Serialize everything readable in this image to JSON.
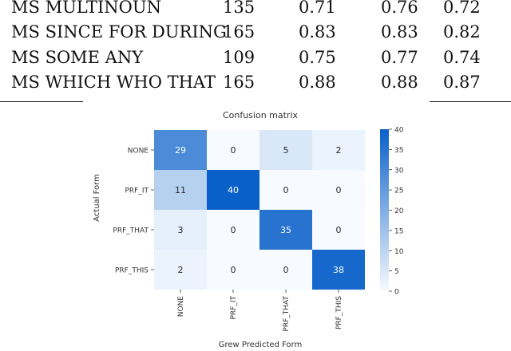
{
  "table": {
    "rows": [
      [
        "MS MULTINOUN",
        "135",
        "0.71",
        "0.76",
        "0.72"
      ],
      [
        "MS SINCE FOR DURING",
        "165",
        "0.83",
        "0.83",
        "0.82"
      ],
      [
        "MS SOME ANY",
        "109",
        "0.75",
        "0.77",
        "0.74"
      ],
      [
        "MS WHICH WHO THAT",
        "165",
        "0.88",
        "0.88",
        "0.87"
      ]
    ]
  },
  "chart_data": {
    "type": "heatmap",
    "title": "Confusion matrix",
    "xlabel": "Grew Predicted Form",
    "ylabel": "Actual Form",
    "x_categories": [
      "NONE",
      "PRF_IT",
      "PRF_THAT",
      "PRF_THIS"
    ],
    "y_categories": [
      "NONE",
      "PRF_IT",
      "PRF_THAT",
      "PRF_THIS"
    ],
    "values": [
      [
        29,
        0,
        5,
        2
      ],
      [
        11,
        40,
        0,
        0
      ],
      [
        3,
        0,
        35,
        0
      ],
      [
        2,
        0,
        0,
        38
      ]
    ],
    "colorbar": {
      "min": 0,
      "max": 40,
      "ticks": [
        0,
        5,
        10,
        15,
        20,
        25,
        30,
        35,
        40
      ]
    },
    "colors": {
      "low": "#f7fbff",
      "high": "#0a60c9",
      "text_dark": "#262626",
      "text_light": "#ffffff"
    }
  }
}
